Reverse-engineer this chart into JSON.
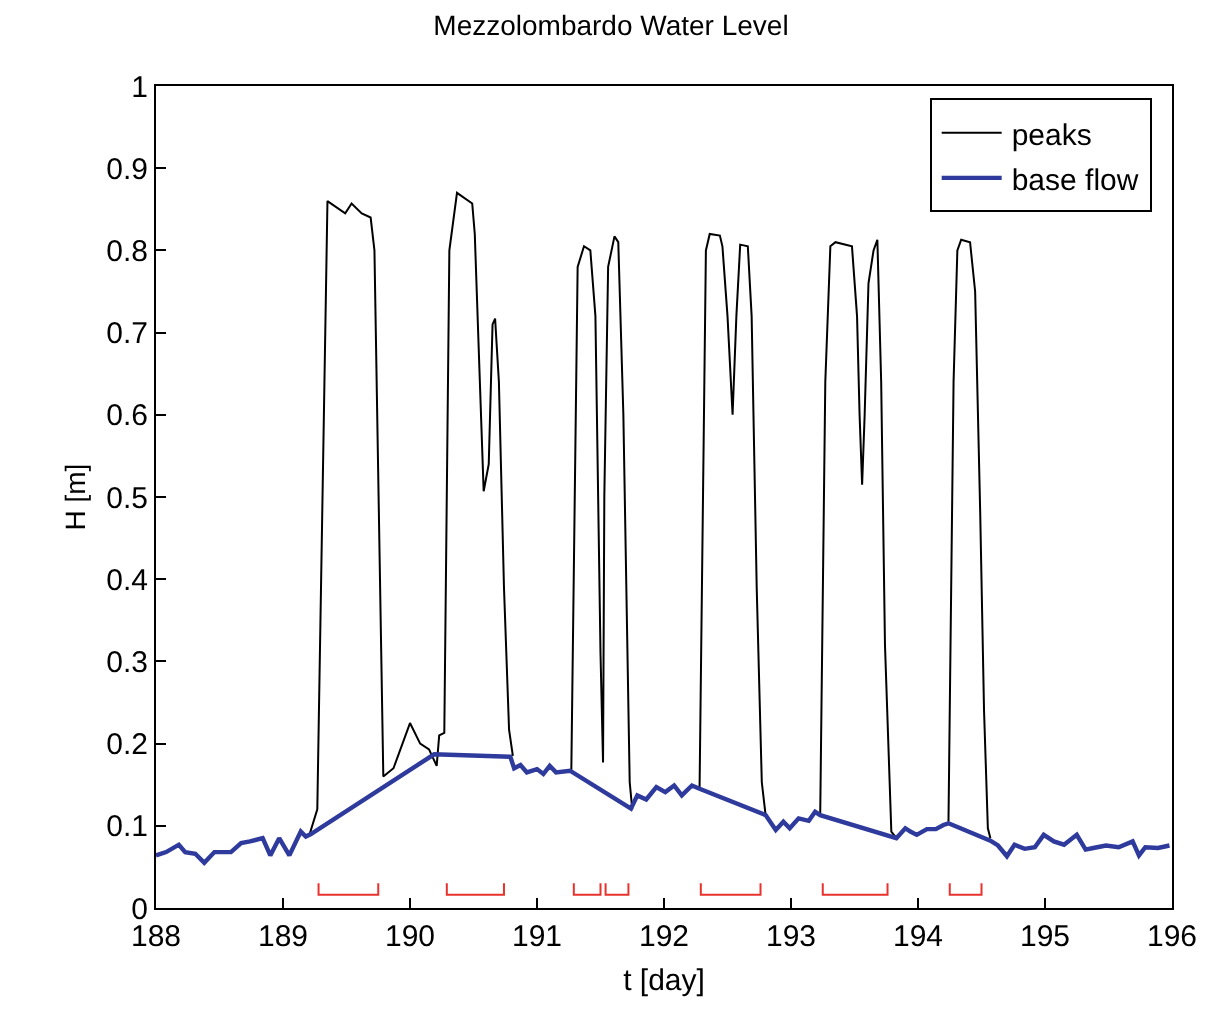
{
  "chart_data": {
    "type": "line",
    "title": "Mezzolombardo Water Level",
    "xlabel": "t [day]",
    "ylabel": "H [m]",
    "xlim": [
      188,
      196
    ],
    "xticks": [
      188,
      189,
      190,
      191,
      192,
      193,
      194,
      195,
      196
    ],
    "ylim": [
      0,
      1
    ],
    "yticks": [
      0,
      0.1,
      0.2,
      0.3,
      0.4,
      0.5,
      0.6,
      0.7,
      0.8,
      0.9,
      1
    ],
    "legend": "top right",
    "marker": "none",
    "line_style": "solid",
    "series": [
      {
        "name": "peaks",
        "color": "#000000",
        "x": [
          189.21,
          189.27,
          189.35,
          189.49,
          189.54,
          189.62,
          189.69,
          189.72,
          189.79,
          189.87,
          190.0,
          190.08,
          190.15,
          190.21,
          190.23,
          190.27,
          190.31,
          190.37,
          190.49,
          190.51,
          190.55,
          190.58,
          190.62,
          190.65,
          190.67,
          190.7,
          190.74,
          190.78,
          190.81,
          191.0,
          191.27,
          191.32,
          191.37,
          191.42,
          191.46,
          191.5,
          191.52,
          191.53,
          191.56,
          191.61,
          191.64,
          191.68,
          191.73,
          191.75,
          192.0,
          192.28,
          192.33,
          192.36,
          192.44,
          192.46,
          192.5,
          192.54,
          192.57,
          192.6,
          192.66,
          192.69,
          192.73,
          192.77,
          192.8,
          193.0,
          193.23,
          193.27,
          193.31,
          193.35,
          193.48,
          193.52,
          193.54,
          193.56,
          193.58,
          193.61,
          193.65,
          193.68,
          193.71,
          193.74,
          193.79,
          193.83,
          194.0,
          194.24,
          194.28,
          194.31,
          194.34,
          194.41,
          194.45,
          194.49,
          194.52,
          194.55,
          194.57
        ],
        "values": [
          0.09,
          0.12,
          0.86,
          0.845,
          0.857,
          0.845,
          0.84,
          0.8,
          0.16,
          0.17,
          0.225,
          0.2,
          0.193,
          0.173,
          0.21,
          0.213,
          0.8,
          0.87,
          0.857,
          0.82,
          0.64,
          0.507,
          0.54,
          0.71,
          0.717,
          0.64,
          0.39,
          0.217,
          0.185,
          null,
          0.165,
          0.78,
          0.805,
          0.8,
          0.72,
          0.31,
          0.177,
          0.5,
          0.78,
          0.817,
          0.81,
          0.6,
          0.153,
          0.12,
          null,
          0.145,
          0.8,
          0.82,
          0.818,
          0.805,
          0.72,
          0.6,
          0.72,
          0.807,
          0.805,
          0.72,
          0.39,
          0.153,
          0.113,
          null,
          0.113,
          0.64,
          0.805,
          0.81,
          0.805,
          0.72,
          0.6,
          0.515,
          0.6,
          0.76,
          0.8,
          0.813,
          0.64,
          0.32,
          0.093,
          0.085,
          null,
          0.105,
          0.64,
          0.8,
          0.813,
          0.81,
          0.75,
          0.48,
          0.24,
          0.097,
          0.085
        ]
      },
      {
        "name": "base flow",
        "color": "#2e3a9c",
        "x": [
          188.0,
          188.08,
          188.18,
          188.23,
          188.31,
          188.38,
          188.46,
          188.59,
          188.67,
          188.74,
          188.84,
          188.9,
          188.97,
          189.05,
          189.14,
          189.18,
          189.22,
          190.19,
          190.79,
          190.82,
          190.87,
          190.92,
          191.0,
          191.05,
          191.1,
          191.15,
          191.26,
          191.74,
          191.79,
          191.86,
          191.94,
          192.01,
          192.08,
          192.14,
          192.22,
          192.28,
          192.8,
          192.88,
          192.94,
          192.99,
          193.06,
          193.14,
          193.19,
          193.23,
          193.83,
          193.9,
          193.94,
          193.99,
          194.07,
          194.14,
          194.2,
          194.24,
          194.57,
          194.63,
          194.7,
          194.76,
          194.84,
          194.92,
          194.99,
          195.07,
          195.15,
          195.25,
          195.32,
          195.38,
          195.48,
          195.58,
          195.69,
          195.74,
          195.79,
          195.89,
          195.98
        ],
        "values": [
          0.064,
          0.068,
          0.077,
          0.068,
          0.066,
          0.055,
          0.068,
          0.068,
          0.079,
          0.081,
          0.085,
          0.064,
          0.085,
          0.064,
          0.093,
          0.087,
          0.09,
          0.187,
          0.184,
          0.17,
          0.174,
          0.165,
          0.169,
          0.163,
          0.173,
          0.165,
          0.167,
          0.121,
          0.137,
          0.132,
          0.147,
          0.141,
          0.149,
          0.137,
          0.149,
          0.145,
          0.113,
          0.095,
          0.105,
          0.097,
          0.109,
          0.106,
          0.117,
          0.113,
          0.085,
          0.097,
          0.093,
          0.089,
          0.096,
          0.096,
          0.101,
          0.103,
          0.082,
          0.076,
          0.063,
          0.077,
          0.072,
          0.074,
          0.089,
          0.081,
          0.077,
          0.089,
          0.071,
          0.073,
          0.076,
          0.074,
          0.081,
          0.064,
          0.074,
          0.073,
          0.076
        ]
      },
      {
        "color": "#e8322d",
        "x": [
          189.28,
          189.28,
          189.75,
          189.75,
          190.0,
          190.29,
          190.29,
          190.74,
          190.74,
          191.0,
          191.29,
          191.29,
          191.5,
          191.5,
          191.52,
          191.54,
          191.54,
          191.72,
          191.72,
          192.0,
          192.29,
          192.29,
          192.76,
          192.76,
          193.0,
          193.25,
          193.25,
          193.76,
          193.76,
          194.0,
          194.25,
          194.25,
          194.5,
          194.5
        ],
        "values": [
          0.03,
          0.016,
          0.016,
          0.03,
          null,
          0.03,
          0.016,
          0.016,
          0.03,
          null,
          0.03,
          0.016,
          0.016,
          0.03,
          null,
          0.03,
          0.016,
          0.016,
          0.03,
          null,
          0.03,
          0.016,
          0.016,
          0.03,
          null,
          0.03,
          0.016,
          0.016,
          0.03,
          null,
          0.03,
          0.016,
          0.016,
          0.03
        ]
      }
    ]
  }
}
